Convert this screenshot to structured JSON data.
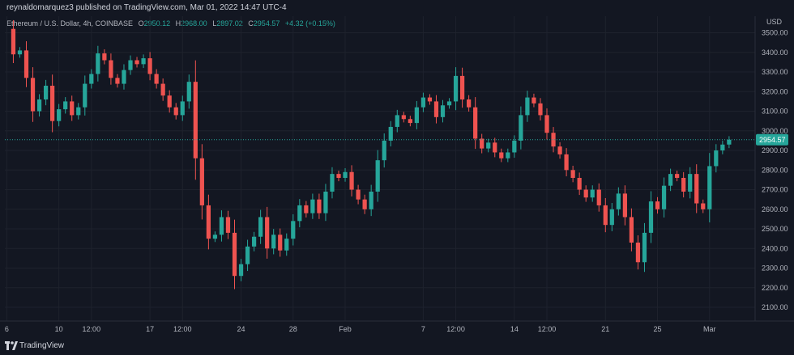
{
  "header": {
    "published": "reynaldomarquez3 published on TradingView.com, Mar 01, 2022 14:47 UTC-4"
  },
  "legend": {
    "symbol": "Ethereum / U.S. Dollar, 4h, COINBASE",
    "o_label": "O",
    "o_value": "2950.12",
    "h_label": "H",
    "h_value": "2968.00",
    "l_label": "L",
    "l_value": "2897.02",
    "c_label": "C",
    "c_value": "2954.57",
    "change": "+4.32 (+0.15%)"
  },
  "footer": {
    "brand": "TradingView"
  },
  "colors": {
    "background": "#131722",
    "up": "#26a69a",
    "down": "#ef5350",
    "grid": "#1e222d",
    "price_line": "#26a69a",
    "price_tag": "#26a69a"
  },
  "chart_data": {
    "type": "candlestick",
    "currency_label": "USD",
    "y_ticks": [
      2100,
      2200,
      2300,
      2400,
      2500,
      2600,
      2700,
      2800,
      2900,
      3000,
      3100,
      3200,
      3300,
      3400,
      3500
    ],
    "y_tick_labels": [
      "2100.00",
      "2200.00",
      "2300.00",
      "2400.00",
      "2500.00",
      "2600.00",
      "2700.00",
      "2800.00",
      "2900.00",
      "3000.00",
      "3100.00",
      "3200.00",
      "3300.00",
      "3400.00",
      "3500.00"
    ],
    "ylim": [
      2030,
      3560
    ],
    "x_ticks": [
      {
        "label": "6",
        "day": 6.0
      },
      {
        "label": "10",
        "day": 10.0
      },
      {
        "label": "12:00",
        "day": 12.5
      },
      {
        "label": "17",
        "day": 17.0
      },
      {
        "label": "12:00",
        "day": 19.5
      },
      {
        "label": "24",
        "day": 24.0
      },
      {
        "label": "28",
        "day": 28.0
      },
      {
        "label": "Feb",
        "day": 32.0
      },
      {
        "label": "7",
        "day": 38.0
      },
      {
        "label": "12:00",
        "day": 40.5
      },
      {
        "label": "14",
        "day": 45.0
      },
      {
        "label": "12:00",
        "day": 47.5
      },
      {
        "label": "21",
        "day": 52.0
      },
      {
        "label": "25",
        "day": 56.0
      },
      {
        "label": "Mar",
        "day": 60.0
      }
    ],
    "x_range_days": [
      5.85,
      63.5
    ],
    "last_price": 2954.57,
    "last_price_label": "2954.57",
    "closes": [
      [
        6.0,
        3520
      ],
      [
        6.5,
        3390
      ],
      [
        7.0,
        3410
      ],
      [
        7.5,
        3270
      ],
      [
        8.0,
        3100
      ],
      [
        8.5,
        3160
      ],
      [
        9.0,
        3230
      ],
      [
        9.5,
        3050
      ],
      [
        10.0,
        3110
      ],
      [
        10.5,
        3150
      ],
      [
        11.0,
        3080
      ],
      [
        11.5,
        3120
      ],
      [
        12.0,
        3240
      ],
      [
        12.5,
        3290
      ],
      [
        13.0,
        3395
      ],
      [
        13.5,
        3360
      ],
      [
        14.0,
        3270
      ],
      [
        14.5,
        3240
      ],
      [
        15.0,
        3310
      ],
      [
        15.5,
        3360
      ],
      [
        16.0,
        3340
      ],
      [
        16.5,
        3370
      ],
      [
        17.0,
        3290
      ],
      [
        17.5,
        3240
      ],
      [
        18.0,
        3180
      ],
      [
        18.5,
        3120
      ],
      [
        19.0,
        3080
      ],
      [
        19.5,
        3150
      ],
      [
        20.0,
        3250
      ],
      [
        20.5,
        2860
      ],
      [
        21.0,
        2620
      ],
      [
        21.5,
        2450
      ],
      [
        22.0,
        2470
      ],
      [
        22.5,
        2560
      ],
      [
        23.0,
        2480
      ],
      [
        23.5,
        2260
      ],
      [
        24.0,
        2320
      ],
      [
        24.5,
        2410
      ],
      [
        25.0,
        2460
      ],
      [
        25.5,
        2560
      ],
      [
        26.0,
        2400
      ],
      [
        26.5,
        2470
      ],
      [
        27.0,
        2390
      ],
      [
        27.5,
        2450
      ],
      [
        28.0,
        2540
      ],
      [
        28.5,
        2620
      ],
      [
        29.0,
        2580
      ],
      [
        29.5,
        2650
      ],
      [
        30.0,
        2580
      ],
      [
        30.5,
        2690
      ],
      [
        31.0,
        2780
      ],
      [
        31.5,
        2760
      ],
      [
        32.0,
        2790
      ],
      [
        32.5,
        2700
      ],
      [
        33.0,
        2650
      ],
      [
        33.5,
        2600
      ],
      [
        34.0,
        2690
      ],
      [
        34.5,
        2850
      ],
      [
        35.0,
        2950
      ],
      [
        35.5,
        3020
      ],
      [
        36.0,
        3080
      ],
      [
        36.5,
        3060
      ],
      [
        37.0,
        3040
      ],
      [
        37.5,
        3120
      ],
      [
        38.0,
        3170
      ],
      [
        38.5,
        3150
      ],
      [
        39.0,
        3070
      ],
      [
        39.5,
        3130
      ],
      [
        40.0,
        3150
      ],
      [
        40.5,
        3280
      ],
      [
        41.0,
        3160
      ],
      [
        41.5,
        3120
      ],
      [
        42.0,
        2960
      ],
      [
        42.5,
        2910
      ],
      [
        43.0,
        2940
      ],
      [
        43.5,
        2890
      ],
      [
        44.0,
        2860
      ],
      [
        44.5,
        2890
      ],
      [
        45.0,
        2950
      ],
      [
        45.5,
        3080
      ],
      [
        46.0,
        3170
      ],
      [
        46.5,
        3140
      ],
      [
        47.0,
        3080
      ],
      [
        47.5,
        2990
      ],
      [
        48.0,
        2920
      ],
      [
        48.5,
        2880
      ],
      [
        49.0,
        2800
      ],
      [
        49.5,
        2760
      ],
      [
        50.0,
        2700
      ],
      [
        50.5,
        2660
      ],
      [
        51.0,
        2700
      ],
      [
        51.5,
        2620
      ],
      [
        52.0,
        2520
      ],
      [
        52.5,
        2600
      ],
      [
        53.0,
        2680
      ],
      [
        53.5,
        2560
      ],
      [
        54.0,
        2430
      ],
      [
        54.5,
        2330
      ],
      [
        55.0,
        2480
      ],
      [
        55.5,
        2640
      ],
      [
        56.0,
        2600
      ],
      [
        56.5,
        2720
      ],
      [
        57.0,
        2780
      ],
      [
        57.5,
        2760
      ],
      [
        58.0,
        2690
      ],
      [
        58.5,
        2780
      ],
      [
        59.0,
        2630
      ],
      [
        59.5,
        2600
      ],
      [
        60.0,
        2820
      ],
      [
        60.5,
        2900
      ],
      [
        61.0,
        2930
      ],
      [
        61.5,
        2954.57
      ]
    ]
  }
}
